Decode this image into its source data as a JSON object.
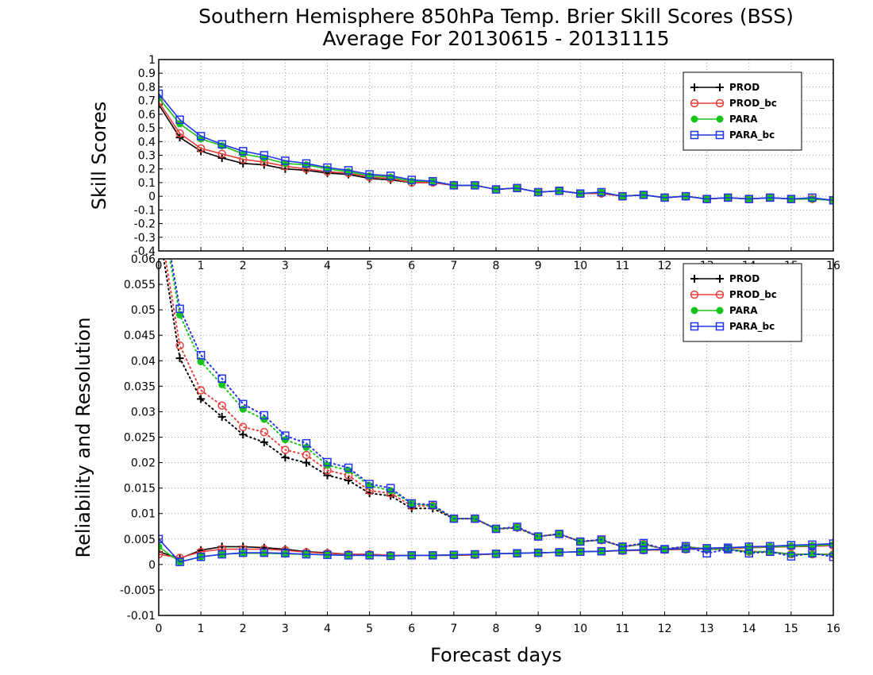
{
  "chart_data": [
    {
      "type": "line",
      "title": "Southern Hemisphere 850hPa Temp. Brier Skill Scores (BSS)",
      "subtitle": "Average For 20130615 - 20131115",
      "ylabel": "Skill Scores",
      "xlim": [
        0,
        16
      ],
      "ylim": [
        -0.4,
        1
      ],
      "yticks": [
        "-0.4",
        "-0.3",
        "-0.2",
        "-0.1",
        "0",
        "0.1",
        "0.2",
        "0.3",
        "0.4",
        "0.5",
        "0.6",
        "0.7",
        "0.8",
        "0.9",
        "1"
      ],
      "xticks": [
        "0",
        "1",
        "2",
        "3",
        "4",
        "5",
        "6",
        "7",
        "8",
        "9",
        "10",
        "11",
        "12",
        "13",
        "14",
        "15",
        "16"
      ],
      "grid": true,
      "legend": "top-right",
      "x": [
        0,
        0.5,
        1,
        1.5,
        2,
        2.5,
        3,
        3.5,
        4,
        4.5,
        5,
        5.5,
        6,
        6.5,
        7,
        7.5,
        8,
        8.5,
        9,
        9.5,
        10,
        10.5,
        11,
        11.5,
        12,
        12.5,
        13,
        13.5,
        14,
        14.5,
        15,
        15.5,
        16
      ],
      "series": [
        {
          "name": "PROD",
          "marker": "plus",
          "color": "#000000",
          "values": [
            0.67,
            0.43,
            0.33,
            0.28,
            0.24,
            0.23,
            0.2,
            0.19,
            0.17,
            0.16,
            0.13,
            0.12,
            0.1,
            0.1,
            0.08,
            0.08,
            0.05,
            0.06,
            0.03,
            0.04,
            0.02,
            0.02,
            0.0,
            0.01,
            -0.01,
            0.0,
            -0.02,
            -0.01,
            -0.02,
            -0.01,
            -0.02,
            -0.02,
            -0.03
          ]
        },
        {
          "name": "PROD_bc",
          "marker": "circle",
          "color": "#e8403c",
          "values": [
            0.69,
            0.46,
            0.35,
            0.31,
            0.27,
            0.25,
            0.22,
            0.2,
            0.18,
            0.17,
            0.14,
            0.13,
            0.1,
            0.1,
            0.08,
            0.08,
            0.05,
            0.06,
            0.03,
            0.04,
            0.02,
            0.02,
            0.0,
            0.01,
            -0.01,
            0.0,
            -0.02,
            -0.01,
            -0.02,
            -0.01,
            -0.02,
            -0.02,
            -0.03
          ]
        },
        {
          "name": "PARA",
          "marker": "dot",
          "color": "#17c417",
          "values": [
            0.72,
            0.53,
            0.42,
            0.37,
            0.31,
            0.28,
            0.24,
            0.23,
            0.2,
            0.18,
            0.15,
            0.14,
            0.11,
            0.11,
            0.08,
            0.08,
            0.05,
            0.06,
            0.03,
            0.04,
            0.02,
            0.03,
            0.0,
            0.01,
            -0.01,
            0.0,
            -0.02,
            -0.01,
            -0.02,
            -0.01,
            -0.02,
            -0.02,
            -0.03
          ]
        },
        {
          "name": "PARA_bc",
          "marker": "square",
          "color": "#2233ee",
          "values": [
            0.75,
            0.56,
            0.44,
            0.38,
            0.33,
            0.3,
            0.26,
            0.24,
            0.21,
            0.19,
            0.16,
            0.15,
            0.12,
            0.11,
            0.08,
            0.08,
            0.05,
            0.06,
            0.03,
            0.04,
            0.02,
            0.03,
            0.0,
            0.01,
            -0.01,
            0.0,
            -0.02,
            -0.01,
            -0.02,
            -0.01,
            -0.02,
            -0.01,
            -0.03
          ]
        }
      ]
    },
    {
      "type": "line",
      "xlabel": "Forecast days",
      "ylabel": "Reliability and Resolution",
      "xlim": [
        0,
        16
      ],
      "ylim": [
        -0.01,
        0.06
      ],
      "yticks": [
        "-0.01",
        "-0.005",
        "0",
        "0.005",
        "0.01",
        "0.015",
        "0.02",
        "0.025",
        "0.03",
        "0.035",
        "0.04",
        "0.045",
        "0.05",
        "0.055",
        "0.06"
      ],
      "xticks": [
        "0",
        "1",
        "2",
        "3",
        "4",
        "5",
        "6",
        "7",
        "8",
        "9",
        "10",
        "11",
        "12",
        "13",
        "14",
        "15",
        "16"
      ],
      "grid": true,
      "legend": "top-right",
      "x": [
        0,
        0.5,
        1,
        1.5,
        2,
        2.5,
        3,
        3.5,
        4,
        4.5,
        5,
        5.5,
        6,
        6.5,
        7,
        7.5,
        8,
        8.5,
        9,
        9.5,
        10,
        10.5,
        11,
        11.5,
        12,
        12.5,
        13,
        13.5,
        14,
        14.5,
        15,
        15.5,
        16
      ],
      "series": [
        {
          "name": "PROD",
          "marker": "plus",
          "color": "#000000",
          "resolution": [
            0.066,
            0.0405,
            0.0325,
            0.029,
            0.0255,
            0.024,
            0.021,
            0.02,
            0.0175,
            0.0165,
            0.014,
            0.0135,
            0.011,
            0.011,
            0.009,
            0.009,
            0.007,
            0.0072,
            0.0055,
            0.006,
            0.0045,
            0.0048,
            0.0035,
            0.004,
            0.003,
            0.0035,
            0.003,
            0.003,
            0.0025,
            0.0025,
            0.002,
            0.002,
            0.002
          ],
          "reliability": [
            0.0025,
            0.0012,
            0.0028,
            0.0035,
            0.0035,
            0.0033,
            0.003,
            0.0025,
            0.0023,
            0.002,
            0.002,
            0.0018,
            0.0018,
            0.0018,
            0.0018,
            0.0019,
            0.0021,
            0.0022,
            0.0023,
            0.0024,
            0.0025,
            0.0026,
            0.0027,
            0.0028,
            0.0029,
            0.003,
            0.0031,
            0.0032,
            0.0033,
            0.0034,
            0.0035,
            0.0036,
            0.0037
          ]
        },
        {
          "name": "PROD_bc",
          "marker": "circle",
          "color": "#e8403c",
          "resolution": [
            0.068,
            0.043,
            0.0342,
            0.0312,
            0.027,
            0.026,
            0.0225,
            0.0215,
            0.0185,
            0.0175,
            0.0145,
            0.014,
            0.0115,
            0.0115,
            0.009,
            0.009,
            0.007,
            0.0073,
            0.0055,
            0.006,
            0.0045,
            0.0048,
            0.0035,
            0.004,
            0.003,
            0.0035,
            0.003,
            0.003,
            0.0025,
            0.0025,
            0.002,
            0.002,
            0.002
          ],
          "reliability": [
            0.002,
            0.0013,
            0.0025,
            0.003,
            0.003,
            0.003,
            0.0028,
            0.0024,
            0.0022,
            0.002,
            0.002,
            0.0018,
            0.0018,
            0.0018,
            0.0018,
            0.0019,
            0.0021,
            0.0022,
            0.0023,
            0.0024,
            0.0025,
            0.0026,
            0.0027,
            0.0028,
            0.0029,
            0.003,
            0.0031,
            0.0032,
            0.0033,
            0.0034,
            0.0035,
            0.0036,
            0.0037
          ]
        },
        {
          "name": "PARA",
          "marker": "dot",
          "color": "#17c417",
          "resolution": [
            0.072,
            0.049,
            0.0398,
            0.0353,
            0.0305,
            0.0285,
            0.0245,
            0.023,
            0.0195,
            0.0185,
            0.0155,
            0.0145,
            0.012,
            0.0115,
            0.009,
            0.009,
            0.007,
            0.0073,
            0.0055,
            0.006,
            0.0045,
            0.0048,
            0.0035,
            0.004,
            0.003,
            0.0035,
            0.003,
            0.003,
            0.0025,
            0.0025,
            0.002,
            0.002,
            0.002
          ],
          "reliability": [
            0.0035,
            0.0005,
            0.0015,
            0.002,
            0.0022,
            0.0022,
            0.0021,
            0.002,
            0.0019,
            0.0018,
            0.0018,
            0.0017,
            0.0018,
            0.0018,
            0.0019,
            0.002,
            0.0021,
            0.0022,
            0.0023,
            0.0024,
            0.0025,
            0.0026,
            0.0028,
            0.0029,
            0.003,
            0.0031,
            0.0032,
            0.0033,
            0.0034,
            0.0035,
            0.0036,
            0.0037,
            0.0039
          ]
        },
        {
          "name": "PARA_bc",
          "marker": "square",
          "color": "#2233ee",
          "resolution": [
            0.074,
            0.0502,
            0.0411,
            0.0365,
            0.0315,
            0.0293,
            0.0253,
            0.0238,
            0.0201,
            0.019,
            0.0158,
            0.015,
            0.012,
            0.0117,
            0.009,
            0.009,
            0.007,
            0.0074,
            0.0055,
            0.006,
            0.0045,
            0.0049,
            0.0035,
            0.0042,
            0.003,
            0.0036,
            0.0022,
            0.003,
            0.0022,
            0.0025,
            0.0016,
            0.0022,
            0.0015
          ],
          "reliability": [
            0.005,
            0.0005,
            0.0015,
            0.002,
            0.0023,
            0.0023,
            0.0022,
            0.002,
            0.0019,
            0.0018,
            0.0018,
            0.0017,
            0.0018,
            0.0018,
            0.0019,
            0.002,
            0.0021,
            0.0022,
            0.0023,
            0.0024,
            0.0025,
            0.0026,
            0.0028,
            0.0029,
            0.003,
            0.0031,
            0.0032,
            0.0033,
            0.0035,
            0.0036,
            0.0038,
            0.0039,
            0.0041
          ]
        }
      ]
    }
  ]
}
